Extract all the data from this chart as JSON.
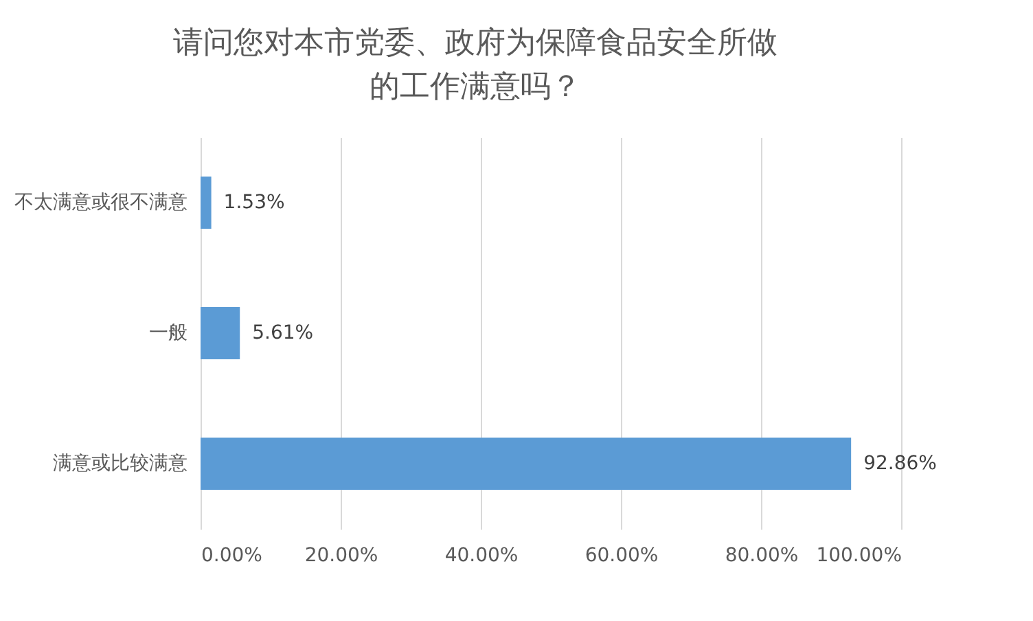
{
  "chart_data": {
    "type": "bar",
    "orientation": "horizontal",
    "title": "请问您对本市党委、政府为保障食品安全所做的工作满意吗？",
    "categories": [
      "不太满意或很不满意",
      "一般",
      "满意或比较满意"
    ],
    "values": [
      1.53,
      5.61,
      92.86
    ],
    "value_labels": [
      "1.53%",
      "5.61%",
      "92.86%"
    ],
    "color": "#5b9bd5",
    "xlim": [
      0,
      100
    ],
    "xticks": [
      {
        "value": 0,
        "label": "0.00%"
      },
      {
        "value": 20,
        "label": "20.00%"
      },
      {
        "value": 40,
        "label": "40.00%"
      },
      {
        "value": 60,
        "label": "60.00%"
      },
      {
        "value": 80,
        "label": "80.00%"
      },
      {
        "value": 100,
        "label": "100.00%"
      }
    ],
    "grid": "x"
  }
}
